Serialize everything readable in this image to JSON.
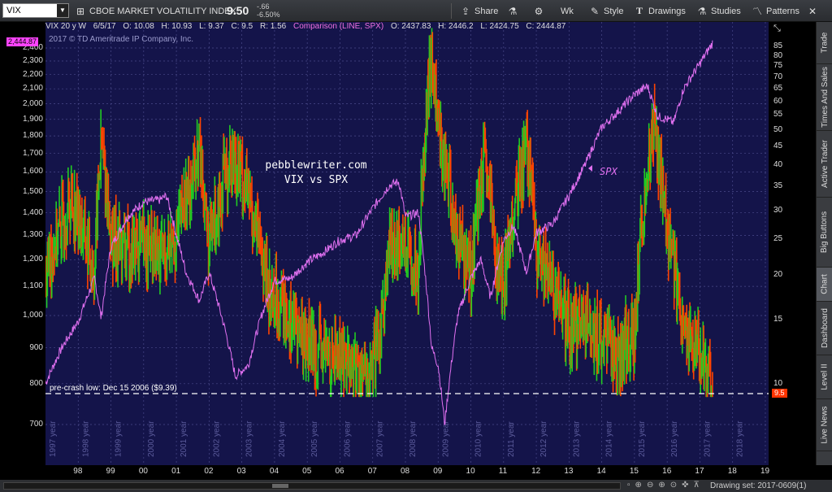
{
  "toolbar": {
    "symbol": "VIX",
    "description": "CBOE MARKET VOLATILITY INDEX",
    "last": "9.50",
    "change": "-.66",
    "change_pct": "-6.50%",
    "share": "Share",
    "timeframe": "Wk",
    "style": "Style",
    "drawings": "Drawings",
    "studies": "Studies",
    "patterns": "Patterns"
  },
  "info_line": {
    "title": "VIX 20 y W",
    "date": "6/5/17",
    "open": "O: 10.08",
    "high": "H: 10.93",
    "low": "L: 9.37",
    "close": "C: 9.5",
    "range": "R: 1.56",
    "comparison": "Comparison (LINE, SPX)",
    "cmp_open": "O: 2437.83",
    "cmp_high": "H: 2446.2",
    "cmp_low": "L: 2424.75",
    "cmp_close": "C: 2444.87",
    "copyright": "2017 © TD Ameritrade IP Company, Inc."
  },
  "annotations": {
    "site": "pebblewriter.com",
    "subtitle": "VIX vs SPX",
    "spx_label": "SPX",
    "low_line_label": "pre-crash low: Dec 15 2006 ($9.39)"
  },
  "badges": {
    "spx": "2,444.87",
    "vix": "9.5"
  },
  "colors": {
    "background": "#14144a",
    "spx": "#e070f0",
    "vix_up": "#22cc22",
    "vix_down": "#ff4400",
    "grid": "#4a4a8a"
  },
  "left_axis_ticks": [
    "2,400",
    "2,300",
    "2,200",
    "2,100",
    "2,000",
    "1,900",
    "1,800",
    "1,700",
    "1,600",
    "1,500",
    "1,400",
    "1,300",
    "1,200",
    "1,100",
    "1,000",
    "900",
    "800",
    "700"
  ],
  "right_axis_ticks": [
    "85",
    "80",
    "75",
    "70",
    "65",
    "60",
    "55",
    "50",
    "45",
    "40",
    "35",
    "30",
    "25",
    "20",
    "15",
    "10"
  ],
  "x_year_labels": [
    "98",
    "99",
    "00",
    "01",
    "02",
    "03",
    "04",
    "05",
    "06",
    "07",
    "08",
    "09",
    "10",
    "11",
    "12",
    "13",
    "14",
    "15",
    "16",
    "17",
    "18",
    "19"
  ],
  "vertical_year_labels": [
    "1997 year",
    "1998 year",
    "1999 year",
    "2000 year",
    "2001 year",
    "2002 year",
    "2003 year",
    "2004 year",
    "2005 year",
    "2006 year",
    "2007 year",
    "2008 year",
    "2009 year",
    "2010 year",
    "2011 year",
    "2012 year",
    "2013 year",
    "2014 year",
    "2015 year",
    "2016 year",
    "2017 year",
    "2018 year"
  ],
  "side_tabs": [
    "Trade",
    "Times And Sales",
    "Active Trader",
    "Big Buttons",
    "Chart",
    "Dashboard",
    "Level II",
    "Live News"
  ],
  "status": {
    "drawing_set": "Drawing set: 2017-0609(1)"
  },
  "chart_data": [
    {
      "type": "line",
      "name": "SPX",
      "x": [
        1997,
        1997.5,
        1998,
        1998.5,
        1998.7,
        1999,
        1999.5,
        2000,
        2000.5,
        2000.7,
        2001,
        2001.3,
        2001.7,
        2002,
        2002.5,
        2002.8,
        2003.2,
        2003.6,
        2004,
        2004.5,
        2005,
        2005.5,
        2006,
        2006.5,
        2007,
        2007.5,
        2007.8,
        2008,
        2008.4,
        2008.8,
        2009,
        2009.2,
        2009.6,
        2010,
        2010.3,
        2010.6,
        2011,
        2011.3,
        2011.7,
        2012,
        2012.5,
        2013,
        2013.5,
        2014,
        2014.5,
        2015,
        2015.4,
        2015.7,
        2016,
        2016.2,
        2016.5,
        2017,
        2017.4
      ],
      "values": [
        800,
        900,
        980,
        1130,
        990,
        1250,
        1380,
        1450,
        1460,
        1480,
        1300,
        1150,
        1050,
        1150,
        950,
        820,
        850,
        1000,
        1120,
        1130,
        1190,
        1230,
        1280,
        1300,
        1420,
        1530,
        1550,
        1380,
        1400,
        900,
        850,
        700,
        1000,
        1130,
        1200,
        1060,
        1280,
        1340,
        1150,
        1310,
        1350,
        1480,
        1640,
        1850,
        1950,
        2060,
        2120,
        1920,
        1900,
        1880,
        2100,
        2280,
        2444.87
      ]
    },
    {
      "type": "line",
      "name": "VIX",
      "x": [
        1997,
        1997.8,
        1998.5,
        1998.7,
        1999,
        1999.5,
        2000,
        2000.5,
        2001,
        2001.7,
        2002,
        2002.5,
        2002.8,
        2003.3,
        2003.8,
        2004.5,
        2005,
        2005.5,
        2006,
        2006.9,
        2007.2,
        2007.6,
        2008,
        2008.4,
        2008.8,
        2009,
        2009.5,
        2010,
        2010.4,
        2010.8,
        2011,
        2011.7,
        2012,
        2012.5,
        2013,
        2013.5,
        2014,
        2014.5,
        2015,
        2015.6,
        2016,
        2016.5,
        2017,
        2017.4
      ],
      "values": [
        20,
        32,
        20,
        45,
        25,
        23,
        24,
        22,
        25,
        43,
        23,
        38,
        42,
        30,
        18,
        15,
        13,
        12,
        12,
        10,
        13,
        25,
        24,
        20,
        80,
        50,
        27,
        20,
        40,
        21,
        18,
        45,
        22,
        18,
        14,
        15,
        13,
        12,
        14,
        50,
        26,
        14,
        12,
        9.5
      ]
    }
  ]
}
